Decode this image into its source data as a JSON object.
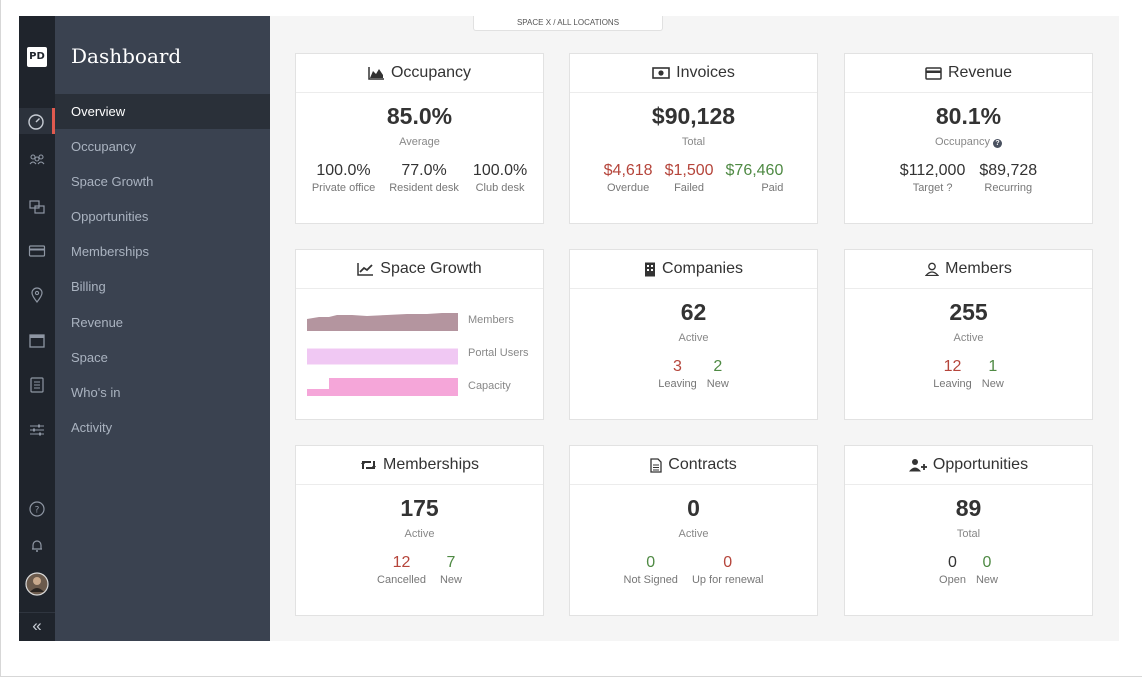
{
  "breadcrumb": "SPACE X  /  ALL LOCATIONS",
  "sidebar": {
    "title": "Dashboard",
    "logo": "PD",
    "items": [
      {
        "label": "Overview"
      },
      {
        "label": "Occupancy"
      },
      {
        "label": "Space Growth"
      },
      {
        "label": "Opportunities"
      },
      {
        "label": "Memberships"
      },
      {
        "label": "Billing"
      },
      {
        "label": "Revenue"
      },
      {
        "label": "Space"
      },
      {
        "label": "Who's in"
      },
      {
        "label": "Activity"
      }
    ],
    "collapse": "«"
  },
  "cards": {
    "occupancy": {
      "title": "Occupancy",
      "icon": "area-chart-icon",
      "value": "85.0%",
      "sub": "Average",
      "stats": [
        {
          "value": "100.0%",
          "label": "Private office"
        },
        {
          "value": "77.0%",
          "label": "Resident desk"
        },
        {
          "value": "100.0%",
          "label": "Club desk"
        }
      ]
    },
    "invoices": {
      "title": "Invoices",
      "icon": "money-icon",
      "value": "$90,128",
      "sub": "Total",
      "stats": [
        {
          "value": "$4,618",
          "label": "Overdue"
        },
        {
          "value": "$1,500",
          "label": "Failed"
        },
        {
          "value": "$76,460",
          "label": "Paid"
        }
      ]
    },
    "revenue": {
      "title": "Revenue",
      "icon": "credit-card-icon",
      "value": "80.1%",
      "sub": "Occupancy",
      "stats": [
        {
          "value": "$112,000",
          "label": "Target"
        },
        {
          "value": "$89,728",
          "label": "Recurring"
        }
      ]
    },
    "space_growth": {
      "title": "Space Growth",
      "icon": "line-chart-icon",
      "rows": [
        {
          "label": "Members",
          "color": "#b4959f"
        },
        {
          "label": "Portal Users",
          "color": "#f0c8f3"
        },
        {
          "label": "Capacity",
          "color": "#f5a6d9"
        }
      ]
    },
    "companies": {
      "title": "Companies",
      "icon": "building-icon",
      "value": "62",
      "sub": "Active",
      "stats": [
        {
          "value": "3",
          "label": "Leaving"
        },
        {
          "value": "2",
          "label": "New"
        }
      ]
    },
    "members": {
      "title": "Members",
      "icon": "user-icon",
      "value": "255",
      "sub": "Active",
      "stats": [
        {
          "value": "12",
          "label": "Leaving"
        },
        {
          "value": "1",
          "label": "New"
        }
      ]
    },
    "memberships": {
      "title": "Memberships",
      "icon": "retweet-icon",
      "value": "175",
      "sub": "Active",
      "stats": [
        {
          "value": "12",
          "label": "Cancelled"
        },
        {
          "value": "7",
          "label": "New"
        }
      ]
    },
    "contracts": {
      "title": "Contracts",
      "icon": "document-icon",
      "value": "0",
      "sub": "Active",
      "stats": [
        {
          "value": "0",
          "label": "Not Signed"
        },
        {
          "value": "0",
          "label": "Up for renewal"
        }
      ]
    },
    "opportunities": {
      "title": "Opportunities",
      "icon": "user-plus-icon",
      "value": "89",
      "sub": "Total",
      "stats": [
        {
          "value": "0",
          "label": "Open"
        },
        {
          "value": "0",
          "label": "New"
        }
      ]
    }
  },
  "colors": {
    "accent": "#e05a4f",
    "negative": "#b5453b",
    "positive": "#4f8a44"
  }
}
